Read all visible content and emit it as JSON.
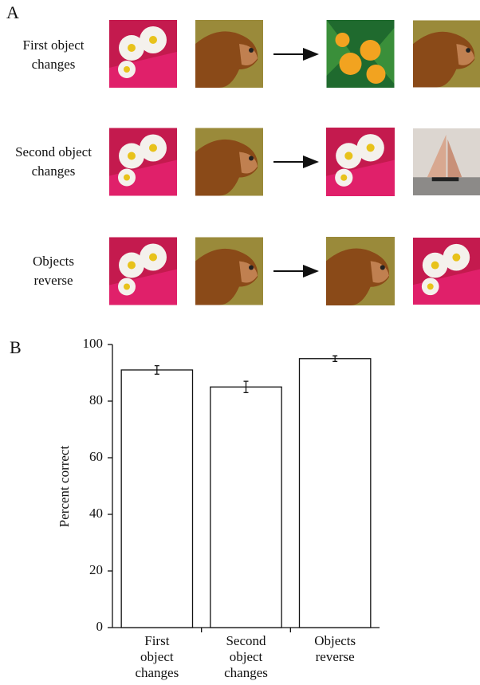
{
  "panel_a": {
    "label": "A",
    "rows": [
      [
        "First object",
        "changes"
      ],
      [
        "Second object",
        "changes"
      ],
      [
        "Objects",
        "reverse"
      ]
    ]
  },
  "chart_data": {
    "type": "bar",
    "title": "B",
    "ylabel": "Percent correct",
    "categories": [
      [
        "First",
        "object",
        "changes"
      ],
      [
        "Second",
        "object",
        "changes"
      ],
      [
        "Objects",
        "reverse"
      ]
    ],
    "values": [
      91,
      85,
      95
    ],
    "errors": [
      1.5,
      2,
      1
    ],
    "color": "#ffffff",
    "ylim": [
      0,
      100
    ],
    "yticks": [
      0,
      20,
      40,
      60,
      80,
      100
    ]
  }
}
